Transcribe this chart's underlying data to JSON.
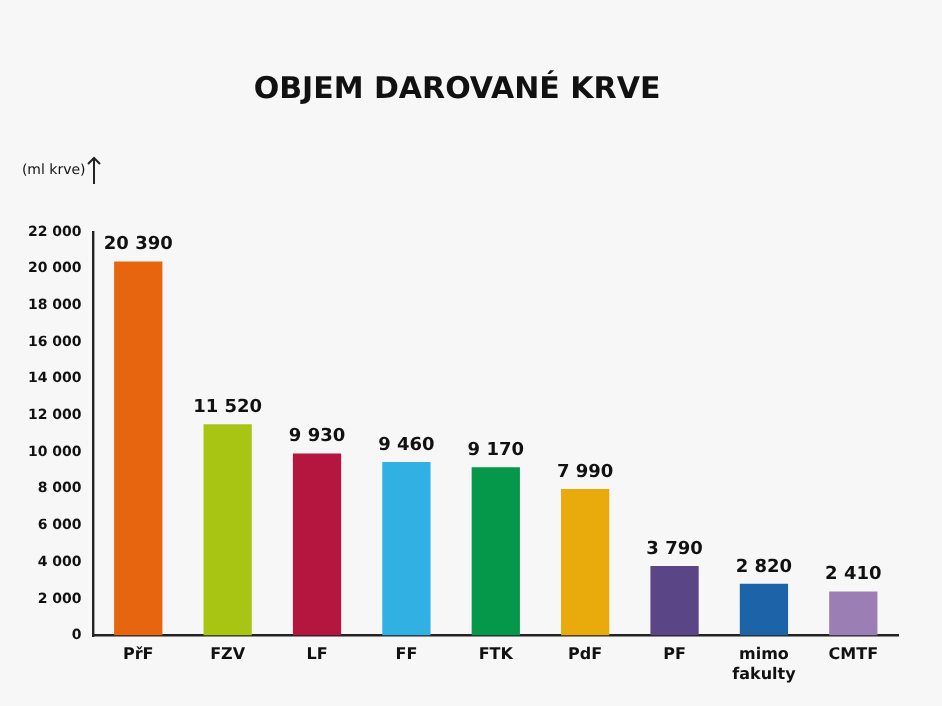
{
  "chart_data": {
    "type": "bar",
    "title": "OBJEM DAROVANÉ KRVE",
    "ylabel": "(ml krve)",
    "categories": [
      "PřF",
      "FZV",
      "LF",
      "FF",
      "FTK",
      "PdF",
      "PF",
      "mimo fakulty",
      "CMTF"
    ],
    "values": [
      20390,
      11520,
      9930,
      9460,
      9170,
      7990,
      3790,
      2820,
      2410
    ],
    "value_labels": [
      "20 390",
      "11 520",
      "9 930",
      "9 460",
      "9 170",
      "7 990",
      "3 790",
      "2 820",
      "2 410"
    ],
    "colors": [
      "#e8650f",
      "#a8c514",
      "#b5163f",
      "#31b0e4",
      "#05984a",
      "#e9ab0c",
      "#5a4586",
      "#1c63a8",
      "#9b7fb4"
    ],
    "ylim": [
      0,
      22000
    ],
    "yticks": [
      {
        "value": 0,
        "label": "0"
      },
      {
        "value": 2000,
        "label": "2 000"
      },
      {
        "value": 4000,
        "label": "4 000"
      },
      {
        "value": 6000,
        "label": "6 000"
      },
      {
        "value": 8000,
        "label": "8 000"
      },
      {
        "value": 10000,
        "label": "10 000"
      },
      {
        "value": 12000,
        "label": "12 000"
      },
      {
        "value": 14000,
        "label": "14 000"
      },
      {
        "value": 16000,
        "label": "16 000"
      },
      {
        "value": 18000,
        "label": "18 000"
      },
      {
        "value": 20000,
        "label": "20 000"
      },
      {
        "value": 22000,
        "label": "22 000"
      }
    ],
    "grid": false,
    "legend": false
  }
}
